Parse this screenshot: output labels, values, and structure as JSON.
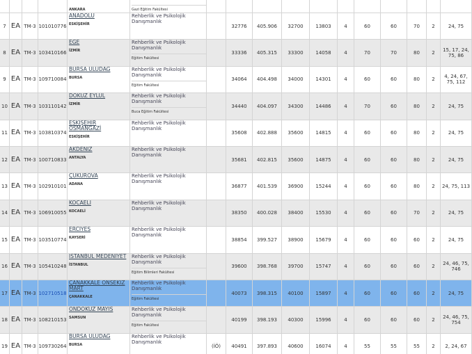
{
  "top_row": {
    "city": "ANKARA",
    "faculty": "Gazi Eğitim Fakültesi"
  },
  "rows": [
    {
      "no": "7",
      "type": "EA",
      "score_type": "TM-3",
      "code": "101010776",
      "university": "ANADOLU",
      "city": "ESKİŞEHİR",
      "program": "Rehberlik ve Psikolojik Danışmanlık",
      "stats": [
        32776,
        405.906,
        32700,
        13803,
        4,
        60,
        60,
        70,
        2,
        "24, 75"
      ]
    },
    {
      "no": "8",
      "type": "EA",
      "score_type": "TM-3",
      "code": "103410166",
      "university": "EGE",
      "city": "İZMİR",
      "program": "Rehberlik ve Psikolojik Danışmanlık",
      "faculty": "Eğitim Fakültesi",
      "stats": [
        33336,
        405.315,
        33300,
        14058,
        4,
        70,
        70,
        80,
        2,
        "15, 17, 24, 75, 86"
      ]
    },
    {
      "no": "9",
      "type": "EA",
      "score_type": "TM-3",
      "code": "109710084",
      "university": "BURSA ULUDAĞ",
      "city": "BURSA",
      "program": "Rehberlik ve Psikolojik Danışmanlık",
      "faculty": "Eğitim Fakültesi",
      "stats": [
        34064,
        404.498,
        34000,
        14301,
        4,
        60,
        60,
        80,
        2,
        "4, 24, 67, 75, 112"
      ]
    },
    {
      "no": "10",
      "type": "EA",
      "score_type": "TM-3",
      "code": "103110142",
      "university": "DOKUZ EYLÜL",
      "city": "İZMİR",
      "program": "Rehberlik ve Psikolojik Danışmanlık",
      "faculty": "Buca Eğitim Fakültesi",
      "stats": [
        34440,
        404.097,
        34300,
        14486,
        4,
        70,
        60,
        80,
        2,
        "24, 75"
      ]
    },
    {
      "no": "11",
      "type": "EA",
      "score_type": "TM-3",
      "code": "103810374",
      "university": "ESKİŞEHİR OSMANGAZİ",
      "city": "ESKİŞEHİR",
      "program": "Rehberlik ve Psikolojik Danışmanlık",
      "stats": [
        35608,
        402.888,
        35600,
        14815,
        4,
        60,
        60,
        80,
        2,
        "24, 75"
      ]
    },
    {
      "no": "12",
      "type": "EA",
      "score_type": "TM-3",
      "code": "100710833",
      "university": "AKDENİZ",
      "city": "ANTALYA",
      "program": "Rehberlik ve Psikolojik Danışmanlık",
      "stats": [
        35681,
        402.815,
        35600,
        14875,
        4,
        60,
        60,
        80,
        2,
        "24, 75"
      ]
    },
    {
      "no": "13",
      "type": "EA",
      "score_type": "TM-3",
      "code": "102910101",
      "university": "ÇUKUROVA",
      "city": "ADANA",
      "program": "Rehberlik ve Psikolojik Danışmanlık",
      "stats": [
        36877,
        401.539,
        36900,
        15244,
        4,
        60,
        60,
        80,
        2,
        "24, 75, 113"
      ]
    },
    {
      "no": "14",
      "type": "EA",
      "score_type": "TM-3",
      "code": "106910055",
      "university": "KOCAELİ",
      "city": "KOCAELİ",
      "program": "Rehberlik ve Psikolojik Danışmanlık",
      "stats": [
        38350,
        400.028,
        38400,
        15530,
        4,
        60,
        60,
        70,
        2,
        "24, 75"
      ]
    },
    {
      "no": "15",
      "type": "EA",
      "score_type": "TM-3",
      "code": "103510774",
      "university": "ERCİYES",
      "city": "KAYSERİ",
      "program": "Rehberlik ve Psikolojik Danışmanlık",
      "stats": [
        38854,
        399.527,
        38900,
        15679,
        4,
        60,
        60,
        60,
        2,
        "24, 75"
      ]
    },
    {
      "no": "16",
      "type": "EA",
      "score_type": "TM-3",
      "code": "105410248",
      "university": "İSTANBUL MEDENİYET",
      "city": "İSTANBUL",
      "program": "Rehberlik ve Psikolojik Danışmanlık",
      "faculty": "Eğitim Bilimleri Fakültesi",
      "stats": [
        39600,
        398.768,
        39700,
        15747,
        4,
        60,
        60,
        60,
        2,
        "24, 46, 75, 746"
      ]
    },
    {
      "no": "17",
      "type": "EA",
      "score_type": "TM-3",
      "code": "102710518",
      "university": "ÇANAKKALE ONSEKİZ MART",
      "city": "ÇANAKKALE",
      "program": "Rehberlik ve Psikolojik Danışmanlık",
      "faculty": "Eğitim Fakültesi",
      "highlight": true,
      "stats": [
        40073,
        398.315,
        40100,
        15897,
        4,
        60,
        60,
        60,
        2,
        "24, 75"
      ]
    },
    {
      "no": "18",
      "type": "EA",
      "score_type": "TM-3",
      "code": "108210153",
      "university": "ONDOKUZ MAYIS",
      "city": "SAMSUN",
      "program": "Rehberlik ve Psikolojik Danışmanlık",
      "faculty": "Eğitim Fakültesi",
      "stats": [
        40199,
        398.193,
        40300,
        15996,
        4,
        60,
        60,
        60,
        2,
        "24, 46, 75, 754"
      ]
    },
    {
      "no": "19",
      "type": "EA",
      "score_type": "TM-3",
      "code": "109730264",
      "university": "BURSA ULUDAĞ",
      "city": "BURSA",
      "program": "Rehberlik ve Psikolojik Danışmanlık",
      "note": "(İÖ)",
      "stats": [
        40491,
        397.893,
        40600,
        16074,
        4,
        55,
        55,
        55,
        2,
        "2, 24, 67"
      ]
    }
  ]
}
